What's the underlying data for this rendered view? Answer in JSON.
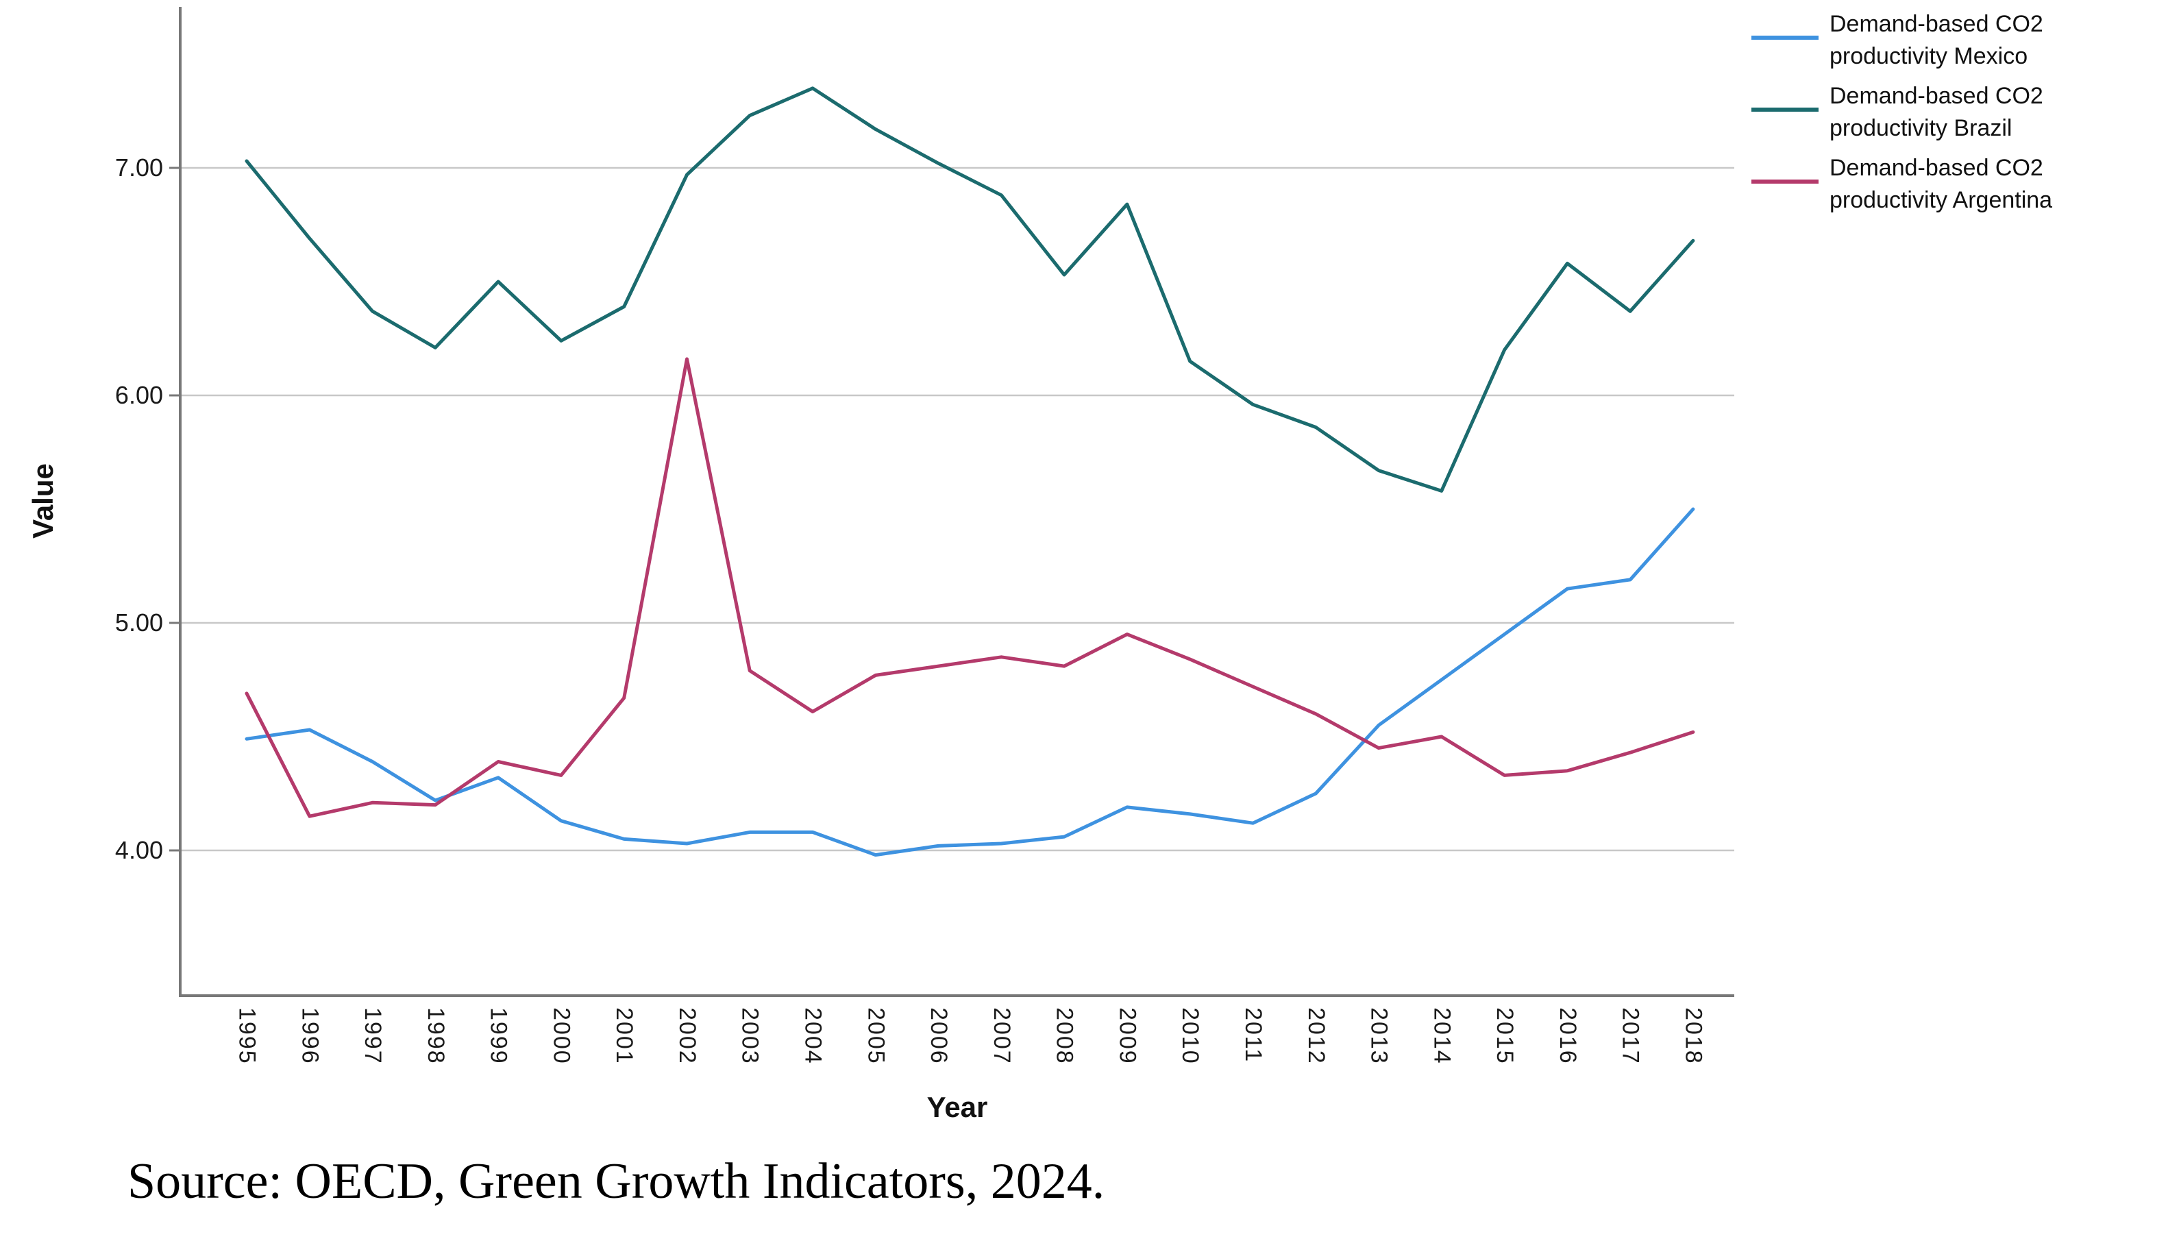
{
  "page": {
    "background": "#ffffff",
    "grid_color": "#c8c8c8",
    "axis_color": "#787878"
  },
  "chart_data": {
    "type": "line",
    "title": "",
    "xlabel": "Year",
    "ylabel": "Value",
    "x": [
      1995,
      1996,
      1997,
      1998,
      1999,
      2000,
      2001,
      2002,
      2003,
      2004,
      2005,
      2006,
      2007,
      2008,
      2009,
      2010,
      2011,
      2012,
      2013,
      2014,
      2015,
      2016,
      2017,
      2018
    ],
    "series": [
      {
        "name": "Demand-based CO2 productivity Mexico",
        "color": "#3E92E0",
        "values": [
          4.49,
          4.53,
          4.39,
          4.22,
          4.32,
          4.13,
          4.05,
          4.03,
          4.08,
          4.08,
          3.98,
          4.02,
          4.03,
          4.06,
          4.19,
          4.16,
          4.12,
          4.25,
          4.55,
          4.75,
          4.95,
          5.15,
          5.19,
          5.5
        ]
      },
      {
        "name": "Demand-based CO2 productivity Brazil",
        "color": "#1B6B6E",
        "values": [
          7.03,
          6.69,
          6.37,
          6.21,
          6.5,
          6.24,
          6.39,
          6.97,
          7.23,
          7.35,
          7.17,
          7.02,
          6.88,
          6.53,
          6.84,
          6.15,
          5.96,
          5.86,
          5.67,
          5.58,
          6.2,
          6.58,
          6.37,
          6.68
        ]
      },
      {
        "name": "Demand-based CO2 productivity Argentina",
        "color": "#B43A6B",
        "values": [
          4.69,
          4.15,
          4.21,
          4.2,
          4.39,
          4.33,
          4.67,
          6.16,
          4.79,
          4.61,
          4.77,
          4.81,
          4.85,
          4.81,
          4.95,
          4.84,
          4.72,
          4.6,
          4.45,
          4.5,
          4.33,
          4.35,
          4.43,
          4.52
        ]
      }
    ],
    "yticks": [
      "4.00",
      "5.00",
      "6.00",
      "7.00"
    ],
    "ytick_values": [
      4,
      5,
      6,
      7
    ],
    "ylim": [
      3.36,
      7.71
    ],
    "grid": "horizontal gridlines on",
    "legend_position": "top-right"
  },
  "source_note": "Source: OECD, Green Growth Indicators, 2024."
}
